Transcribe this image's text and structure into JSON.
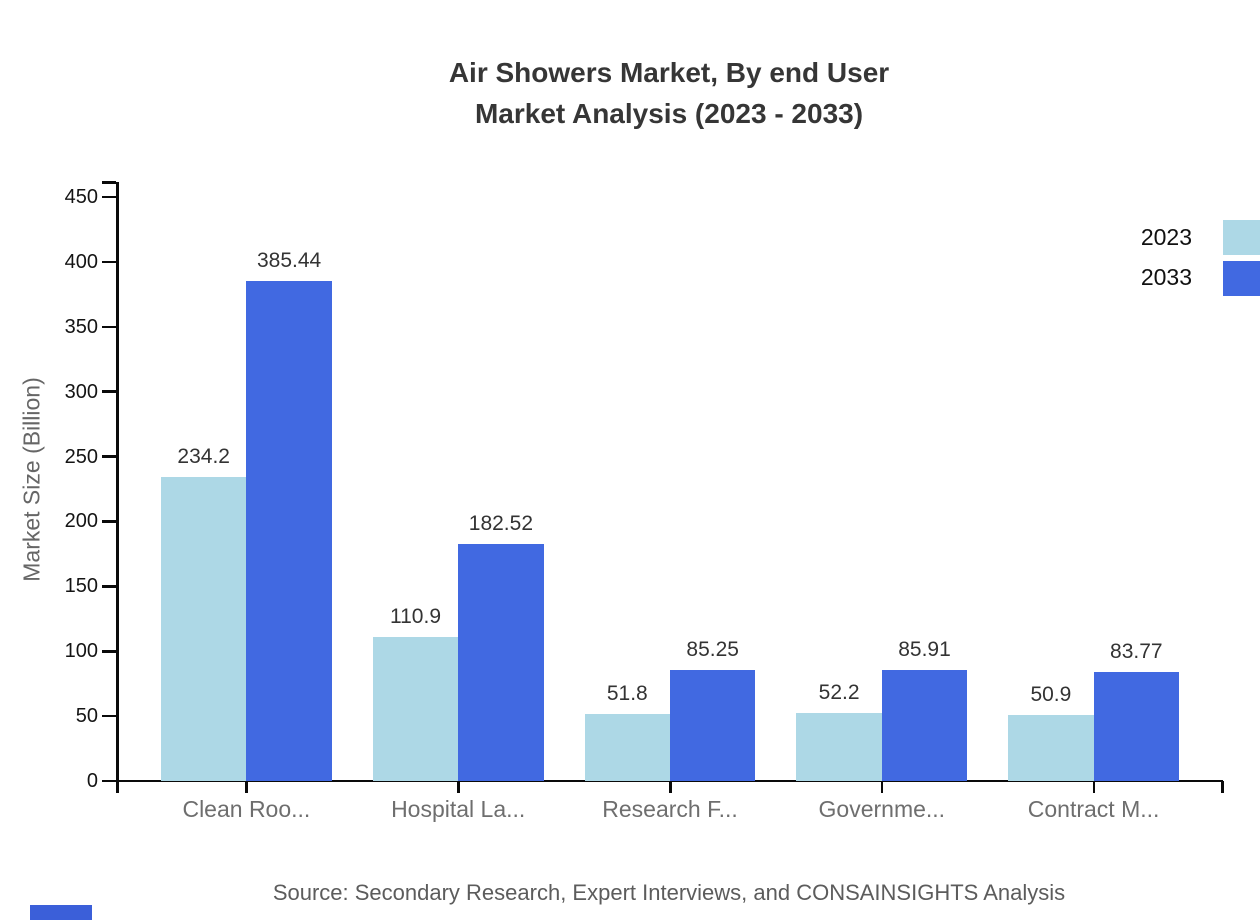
{
  "title": {
    "line1": "Air Showers Market, By end User",
    "line2": "Market Analysis (2023 - 2033)"
  },
  "chart_data": {
    "type": "bar",
    "categories": [
      "Clean Roo...",
      "Hospital La...",
      "Research F...",
      "Governme...",
      "Contract M..."
    ],
    "series": [
      {
        "name": "2023",
        "color": "#ADD8E6",
        "values": [
          234.2,
          110.9,
          51.8,
          52.2,
          50.9
        ]
      },
      {
        "name": "2033",
        "color": "#4169E1",
        "values": [
          385.44,
          182.52,
          85.25,
          85.91,
          83.77
        ]
      }
    ],
    "value_labels": {
      "2023": [
        "234.2",
        "110.9",
        "51.8",
        "52.2",
        "50.9"
      ],
      "2033": [
        "385.44",
        "182.52",
        "85.25",
        "85.91",
        "83.77"
      ]
    },
    "xlabel": "",
    "ylabel": "Market Size (Billion)",
    "ylim": [
      0,
      450
    ],
    "ytick_step": 50,
    "yticks": [
      0,
      50,
      100,
      150,
      200,
      250,
      300,
      350,
      400,
      450
    ],
    "grid": false,
    "legend_position": "top-right"
  },
  "legend": {
    "items": [
      {
        "label": "2023",
        "color": "#ADD8E6"
      },
      {
        "label": "2033",
        "color": "#4169E1"
      }
    ]
  },
  "source": {
    "text": "Source: Secondary Research, Expert Interviews, and CONSAINSIGHTS Analysis"
  },
  "colors": {
    "series_2023": "#ADD8E6",
    "series_2033": "#4169E1",
    "title_text": "#363636",
    "axis": "#0a0a0a",
    "tick_label": "#141414",
    "category_label": "#6e6e6e",
    "value_label": "#333333",
    "muted_text": "#5c5c5c",
    "background": "#ffffff",
    "brand_mark": "#3b5fd9"
  }
}
